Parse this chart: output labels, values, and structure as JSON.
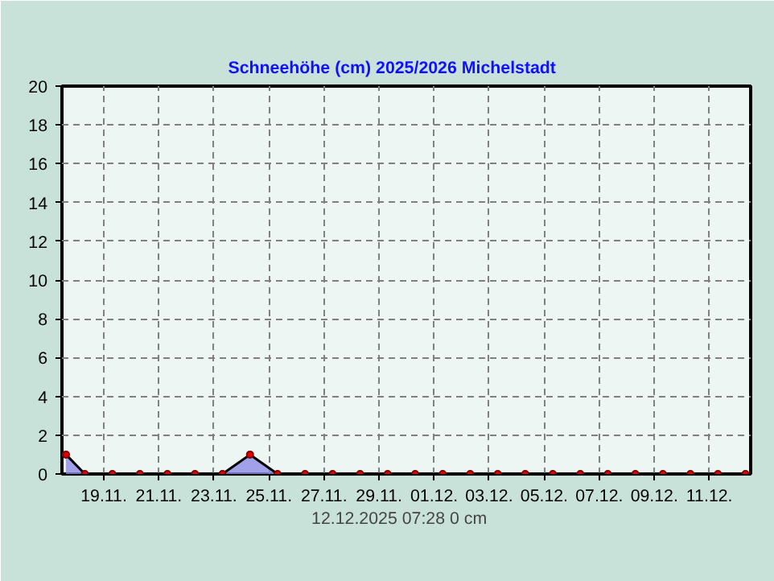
{
  "chart_data": {
    "type": "area",
    "title": "Schneehöhe (cm)  2025/2026      Michelstadt",
    "x": [
      "2025-11-17T15:00",
      "2025-11-18T07:28",
      "2025-11-19T07:28",
      "2025-11-20T07:28",
      "2025-11-21T07:28",
      "2025-11-22T07:28",
      "2025-11-23T07:28",
      "2025-11-24T07:28",
      "2025-11-25T07:28",
      "2025-11-26T07:28",
      "2025-11-27T07:28",
      "2025-11-28T07:28",
      "2025-11-29T07:28",
      "2025-11-30T07:28",
      "2025-12-01T07:28",
      "2025-12-02T07:28",
      "2025-12-03T07:28",
      "2025-12-04T07:28",
      "2025-12-05T07:28",
      "2025-12-06T07:28",
      "2025-12-07T07:28",
      "2025-12-08T07:28",
      "2025-12-09T07:28",
      "2025-12-10T07:28",
      "2025-12-11T07:28",
      "2025-12-12T07:28"
    ],
    "series": [
      {
        "color": "#8c8ce6",
        "values": [
          1,
          0,
          0,
          0,
          0,
          0,
          0,
          1,
          0,
          0,
          0,
          0,
          0,
          0,
          0,
          0,
          0,
          0,
          0,
          0,
          0,
          0,
          0,
          0,
          0,
          0
        ]
      }
    ],
    "xlim": [
      "2025-11-17T11:30",
      "2025-12-12T12:00"
    ],
    "xticks": [
      {
        "value": "2025-11-19",
        "label": "19.11."
      },
      {
        "value": "2025-11-21",
        "label": "21.11."
      },
      {
        "value": "2025-11-23",
        "label": "23.11."
      },
      {
        "value": "2025-11-25",
        "label": "25.11."
      },
      {
        "value": "2025-11-27",
        "label": "27.11."
      },
      {
        "value": "2025-11-29",
        "label": "29.11."
      },
      {
        "value": "2025-12-01",
        "label": "01.12."
      },
      {
        "value": "2025-12-03",
        "label": "03.12."
      },
      {
        "value": "2025-12-05",
        "label": "05.12."
      },
      {
        "value": "2025-12-07",
        "label": "07.12."
      },
      {
        "value": "2025-12-09",
        "label": "09.12."
      },
      {
        "value": "2025-12-11",
        "label": "11.12."
      }
    ],
    "ylim": [
      0,
      20
    ],
    "yticks": [
      0,
      2,
      4,
      6,
      8,
      10,
      12,
      14,
      16,
      18,
      20
    ],
    "grid": true,
    "marker": "circle",
    "annotations": [
      "12.12.2025  07:28   0 cm"
    ]
  }
}
